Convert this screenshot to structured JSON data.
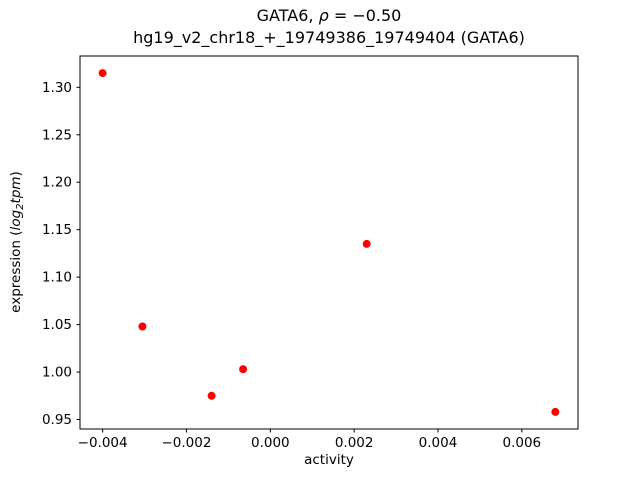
{
  "figure": {
    "title_line1_prefix": "GATA6, ",
    "title_line1_rho": "ρ",
    "title_line1_rest": " = −0.50",
    "title_line2": "hg19_v2_chr18_+_19749386_19749404 (GATA6)",
    "xlabel": "activity",
    "ylabel_prefix": "expression (",
    "ylabel_log": "log",
    "ylabel_sub": "2",
    "ylabel_tpm": "tpm",
    "ylabel_suffix": ")"
  },
  "chart_data": {
    "type": "scatter",
    "title": "GATA6, ρ = −0.50\nhg19_v2_chr18_+_19749386_19749404 (GATA6)",
    "xlabel": "activity",
    "ylabel": "expression (log2 tpm)",
    "legend": "none",
    "grid": false,
    "marker": "circle",
    "marker_color": "#ff0000",
    "xlim": [
      -0.00454,
      0.00734
    ],
    "ylim": [
      0.94,
      1.333
    ],
    "xticks": [
      -0.004,
      -0.002,
      0.0,
      0.002,
      0.004,
      0.006
    ],
    "yticks": [
      0.95,
      1.0,
      1.05,
      1.1,
      1.15,
      1.2,
      1.25,
      1.3
    ],
    "points": [
      [
        -0.004,
        1.315
      ],
      [
        -0.00305,
        1.048
      ],
      [
        -0.0014,
        0.975
      ],
      [
        -0.00065,
        1.003
      ],
      [
        0.0023,
        1.135
      ],
      [
        0.0068,
        0.958
      ]
    ]
  }
}
